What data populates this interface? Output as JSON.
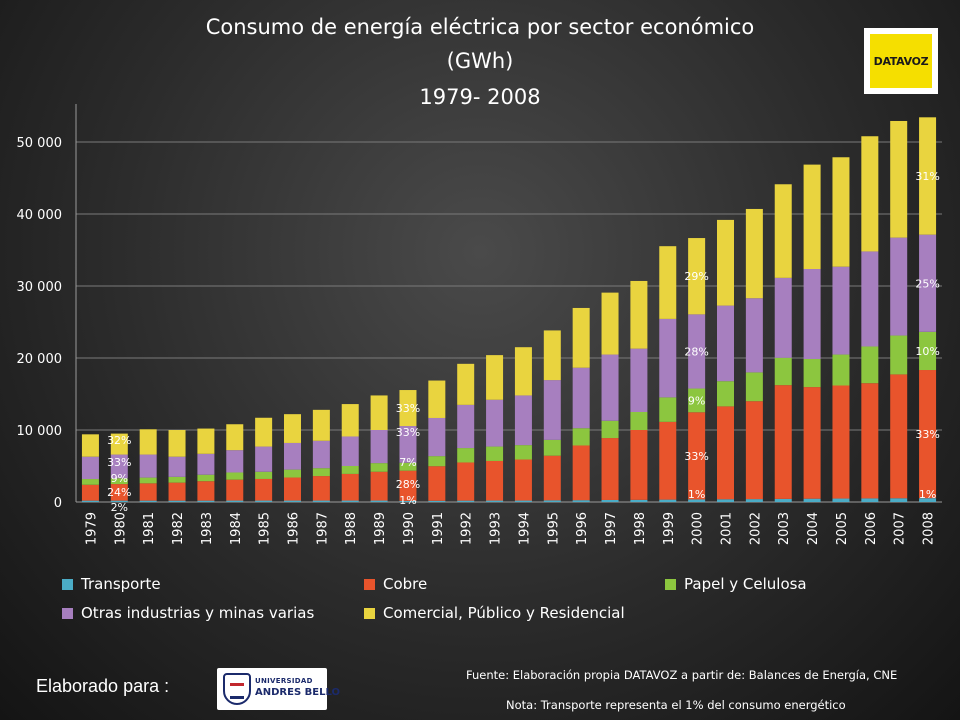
{
  "chart_data": {
    "type": "bar",
    "stacked": true,
    "title": "Consumo de energía eléctrica por sector económico",
    "subtitle": "(GWh)",
    "period": "1979- 2008",
    "xlabel": "",
    "ylabel": "",
    "ylim": [
      0,
      55000
    ],
    "y_ticks": [
      0,
      10000,
      20000,
      30000,
      40000,
      50000
    ],
    "y_tick_labels": [
      "0",
      "10 000",
      "20 000",
      "30 000",
      "40 000",
      "50 000"
    ],
    "grid": true,
    "legend_position": "bottom",
    "categories": [
      "1979",
      "1980",
      "1981",
      "1982",
      "1983",
      "1984",
      "1985",
      "1986",
      "1987",
      "1988",
      "1989",
      "1990",
      "1991",
      "1992",
      "1993",
      "1994",
      "1995",
      "1996",
      "1997",
      "1998",
      "1999",
      "2000",
      "2001",
      "2002",
      "2003",
      "2004",
      "2005",
      "2006",
      "2007",
      "2008"
    ],
    "series": [
      {
        "name": "Transporte",
        "color": "#4bacc6",
        "values": [
          190,
          190,
          190,
          190,
          190,
          200,
          200,
          200,
          200,
          200,
          200,
          150,
          170,
          190,
          200,
          200,
          230,
          250,
          280,
          300,
          330,
          360,
          380,
          400,
          430,
          460,
          480,
          500,
          520,
          530
        ]
      },
      {
        "name": "Cobre",
        "color": "#e8542c",
        "values": [
          2200,
          2300,
          2400,
          2500,
          2700,
          2900,
          3000,
          3200,
          3400,
          3700,
          4000,
          4200,
          4800,
          5300,
          5500,
          5700,
          6200,
          7600,
          8600,
          9700,
          10800,
          12100,
          12900,
          13600,
          15800,
          15500,
          15700,
          16000,
          17200,
          17800
        ]
      },
      {
        "name": "Papel y Celulosa",
        "color": "#8cc63f",
        "values": [
          800,
          800,
          800,
          800,
          900,
          1000,
          1000,
          1100,
          1100,
          1100,
          1200,
          1100,
          1400,
          2000,
          2000,
          2000,
          2200,
          2400,
          2400,
          2500,
          3400,
          3300,
          3500,
          4000,
          3800,
          3900,
          4300,
          5100,
          5400,
          5300
        ]
      },
      {
        "name": "Otras industrias y minas varias",
        "color": "#a77fbf",
        "values": [
          3100,
          3300,
          3200,
          2800,
          2900,
          3100,
          3500,
          3700,
          3800,
          4100,
          4600,
          5100,
          5300,
          6000,
          6500,
          6900,
          8300,
          8400,
          9200,
          8800,
          10900,
          10300,
          10500,
          10300,
          11100,
          12500,
          12200,
          13200,
          13600,
          13500
        ]
      },
      {
        "name": "Comercial, Público y Residencial",
        "color": "#e9d43f",
        "values": [
          3110,
          2910,
          3510,
          3710,
          3510,
          3600,
          4000,
          4000,
          4300,
          4500,
          4800,
          5000,
          5200,
          5700,
          6200,
          6700,
          6900,
          8300,
          8600,
          9400,
          10100,
          10600,
          11900,
          12400,
          13000,
          14500,
          15200,
          16000,
          16200,
          16300
        ]
      }
    ],
    "data_labels": {
      "1980": [
        "2%",
        "24%",
        "9%",
        "33%",
        "32%"
      ],
      "1990": [
        "1%",
        "28%",
        "7%",
        "33%",
        "33%"
      ],
      "2000": [
        "1%",
        "33%",
        "9%",
        "28%",
        "29%"
      ],
      "2008": [
        "1%",
        "33%",
        "10%",
        "25%",
        "31%"
      ]
    }
  },
  "header": {
    "title_line1": "Consumo de energía eléctrica por sector económico",
    "title_line2": "(GWh)",
    "title_line3": "1979- 2008",
    "brand_logo": "DATAVOZ"
  },
  "legend": {
    "items": [
      {
        "label": "Transporte",
        "color": "#4bacc6"
      },
      {
        "label": "Cobre",
        "color": "#e8542c"
      },
      {
        "label": "Papel y Celulosa",
        "color": "#8cc63f"
      },
      {
        "label": "Otras industrias y minas varias",
        "color": "#a77fbf"
      },
      {
        "label": "Comercial, Público y Residencial",
        "color": "#e9d43f"
      }
    ]
  },
  "footer": {
    "elaborado_label": "Elaborado para :",
    "university_line1": "UNIVERSIDAD",
    "university_line2": "ANDRES BELLO",
    "fuente": "Fuente: Elaboración propia DATAVOZ a partir de: Balances de Energía, CNE",
    "nota": "Nota: Transporte representa el 1% del consumo energético"
  }
}
